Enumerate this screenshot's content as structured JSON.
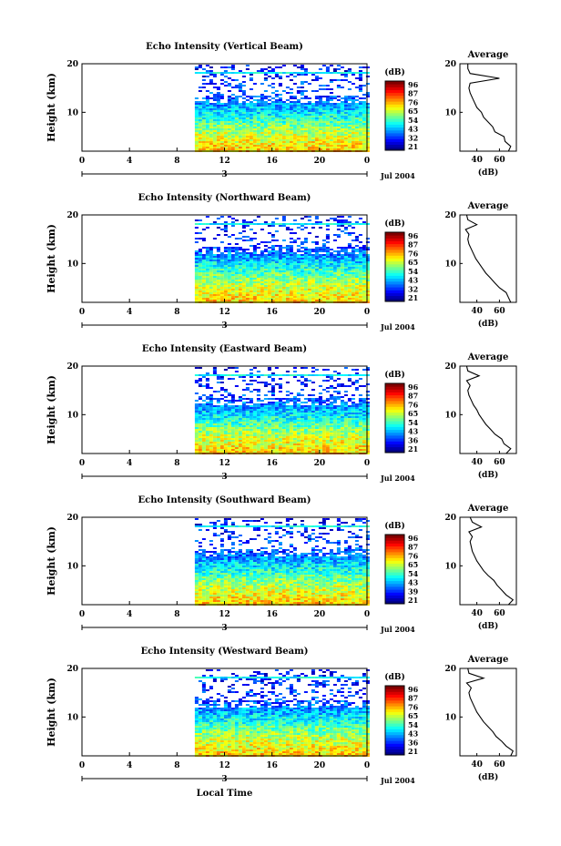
{
  "figure": {
    "xlabel": "Local Time",
    "date_label": "Jul 2004",
    "height_label": "Height (km)",
    "unit_label": "(dB)",
    "avg_title": "Average",
    "day_marker": "3"
  },
  "chart_data": [
    {
      "type": "heatmap",
      "title": "Echo Intensity (Vertical Beam)",
      "xlabel": "",
      "ylabel": "Height (km)",
      "x_ticks": [
        "0",
        "4",
        "8",
        "12",
        "16",
        "20",
        "0"
      ],
      "xlim": [
        0,
        24
      ],
      "ylim": [
        2,
        20
      ],
      "y_ticks": [
        "20",
        "10"
      ],
      "data_start_hour": 9.5,
      "colorbar": {
        "label": "(dB)",
        "ticks": [
          "96",
          "87",
          "76",
          "65",
          "54",
          "43",
          "32",
          "21"
        ]
      },
      "profile": {
        "title": "Average",
        "xlabel": "(dB)",
        "x_ticks": [
          "40",
          "60"
        ],
        "xlim": [
          25,
          75
        ],
        "heights": [
          2,
          3,
          4,
          5,
          6,
          7,
          8,
          9,
          10,
          11,
          12,
          13,
          14,
          15,
          16,
          17,
          18,
          19,
          20
        ],
        "values": [
          68,
          70,
          65,
          64,
          56,
          54,
          50,
          46,
          44,
          40,
          38,
          36,
          34,
          33,
          34,
          60,
          34,
          32,
          32
        ]
      }
    },
    {
      "type": "heatmap",
      "title": "Echo Intensity (Northward Beam)",
      "xlabel": "",
      "ylabel": "Height (km)",
      "x_ticks": [
        "0",
        "4",
        "8",
        "12",
        "16",
        "20",
        "0"
      ],
      "xlim": [
        0,
        24
      ],
      "ylim": [
        2,
        20
      ],
      "y_ticks": [
        "20",
        "10"
      ],
      "data_start_hour": 9.5,
      "colorbar": {
        "label": "(dB)",
        "ticks": [
          "96",
          "87",
          "76",
          "65",
          "54",
          "43",
          "32",
          "21"
        ]
      },
      "profile": {
        "title": "Average",
        "xlabel": "(dB)",
        "x_ticks": [
          "40",
          "60"
        ],
        "xlim": [
          25,
          75
        ],
        "heights": [
          2,
          3,
          4,
          5,
          6,
          7,
          8,
          9,
          10,
          11,
          12,
          13,
          14,
          15,
          16,
          17,
          18,
          19,
          20
        ],
        "values": [
          70,
          68,
          66,
          60,
          56,
          52,
          48,
          45,
          42,
          39,
          37,
          35,
          33,
          32,
          33,
          30,
          40,
          32,
          31
        ]
      }
    },
    {
      "type": "heatmap",
      "title": "Echo Intensity (Eastward Beam)",
      "xlabel": "",
      "ylabel": "Height (km)",
      "x_ticks": [
        "0",
        "4",
        "8",
        "12",
        "16",
        "20",
        "0"
      ],
      "xlim": [
        0,
        24
      ],
      "ylim": [
        2,
        20
      ],
      "y_ticks": [
        "20",
        "10"
      ],
      "data_start_hour": 9.5,
      "colorbar": {
        "label": "(dB)",
        "ticks": [
          "96",
          "87",
          "76",
          "65",
          "54",
          "43",
          "36",
          "21"
        ]
      },
      "profile": {
        "title": "Average",
        "xlabel": "(dB)",
        "x_ticks": [
          "40",
          "60"
        ],
        "xlim": [
          25,
          75
        ],
        "heights": [
          2,
          3,
          4,
          5,
          6,
          7,
          8,
          9,
          10,
          11,
          12,
          13,
          14,
          15,
          16,
          17,
          18,
          19,
          20
        ],
        "values": [
          66,
          70,
          64,
          62,
          56,
          52,
          48,
          45,
          42,
          40,
          37,
          35,
          33,
          32,
          34,
          31,
          42,
          32,
          31
        ]
      }
    },
    {
      "type": "heatmap",
      "title": "Echo Intensity (Southward Beam)",
      "xlabel": "",
      "ylabel": "Height (km)",
      "x_ticks": [
        "0",
        "4",
        "8",
        "12",
        "16",
        "20",
        "0"
      ],
      "xlim": [
        0,
        24
      ],
      "ylim": [
        2,
        20
      ],
      "y_ticks": [
        "20",
        "10"
      ],
      "data_start_hour": 9.5,
      "colorbar": {
        "label": "(dB)",
        "ticks": [
          "96",
          "87",
          "76",
          "65",
          "54",
          "43",
          "39",
          "21"
        ]
      },
      "profile": {
        "title": "Average",
        "xlabel": "(dB)",
        "x_ticks": [
          "40",
          "60"
        ],
        "xlim": [
          25,
          75
        ],
        "heights": [
          2,
          3,
          4,
          5,
          6,
          7,
          8,
          9,
          10,
          11,
          12,
          13,
          14,
          15,
          16,
          17,
          18,
          19,
          20
        ],
        "values": [
          68,
          72,
          66,
          62,
          58,
          55,
          50,
          46,
          43,
          40,
          38,
          36,
          35,
          34,
          36,
          33,
          44,
          36,
          34
        ]
      }
    },
    {
      "type": "heatmap",
      "title": "Echo Intensity (Westward Beam)",
      "xlabel": "Local Time",
      "ylabel": "Height (km)",
      "x_ticks": [
        "0",
        "4",
        "8",
        "12",
        "16",
        "20",
        "0"
      ],
      "xlim": [
        0,
        24
      ],
      "ylim": [
        2,
        20
      ],
      "y_ticks": [
        "20",
        "10"
      ],
      "data_start_hour": 9.5,
      "colorbar": {
        "label": "(dB)",
        "ticks": [
          "96",
          "87",
          "76",
          "65",
          "54",
          "43",
          "36",
          "21"
        ]
      },
      "profile": {
        "title": "Average",
        "xlabel": "(dB)",
        "x_ticks": [
          "40",
          "60"
        ],
        "xlim": [
          25,
          75
        ],
        "heights": [
          2,
          3,
          4,
          5,
          6,
          7,
          8,
          9,
          10,
          11,
          12,
          13,
          14,
          15,
          16,
          17,
          18,
          19,
          20
        ],
        "values": [
          70,
          72,
          66,
          62,
          57,
          54,
          50,
          46,
          43,
          40,
          38,
          36,
          34,
          33,
          35,
          31,
          46,
          33,
          32
        ]
      }
    }
  ]
}
